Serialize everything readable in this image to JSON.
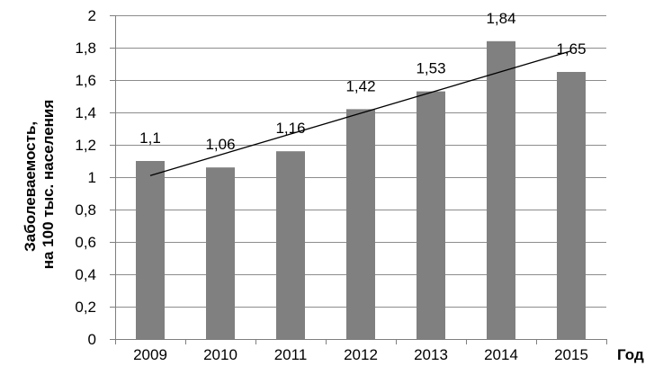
{
  "chart_data": {
    "type": "bar",
    "categories": [
      "2009",
      "2010",
      "2011",
      "2012",
      "2013",
      "2014",
      "2015"
    ],
    "values": [
      1.1,
      1.06,
      1.16,
      1.42,
      1.53,
      1.84,
      1.65
    ],
    "value_labels": [
      "1,1",
      "1,06",
      "1,16",
      "1,42",
      "1,53",
      "1,84",
      "1,65"
    ],
    "y_tick_labels": [
      "0",
      "0,2",
      "0,4",
      "0,6",
      "0,8",
      "1",
      "1,2",
      "1,4",
      "1,6",
      "1,8",
      "2"
    ],
    "y_ticks": [
      0,
      0.2,
      0.4,
      0.6,
      0.8,
      1.0,
      1.2,
      1.4,
      1.6,
      1.8,
      2.0
    ],
    "ylim": [
      0,
      2
    ],
    "xlabel": "Год",
    "ylabel_lines": [
      "Заболеваемость,",
      "на 100 тыс. населения"
    ],
    "trendline": true,
    "trendline_range": [
      1.01,
      1.78
    ],
    "grid": true,
    "legend": "none",
    "colors": {
      "bar": "#808080",
      "grid": "#8c8c8c",
      "axis": "#7f7f7f",
      "trend": "#000000"
    }
  }
}
